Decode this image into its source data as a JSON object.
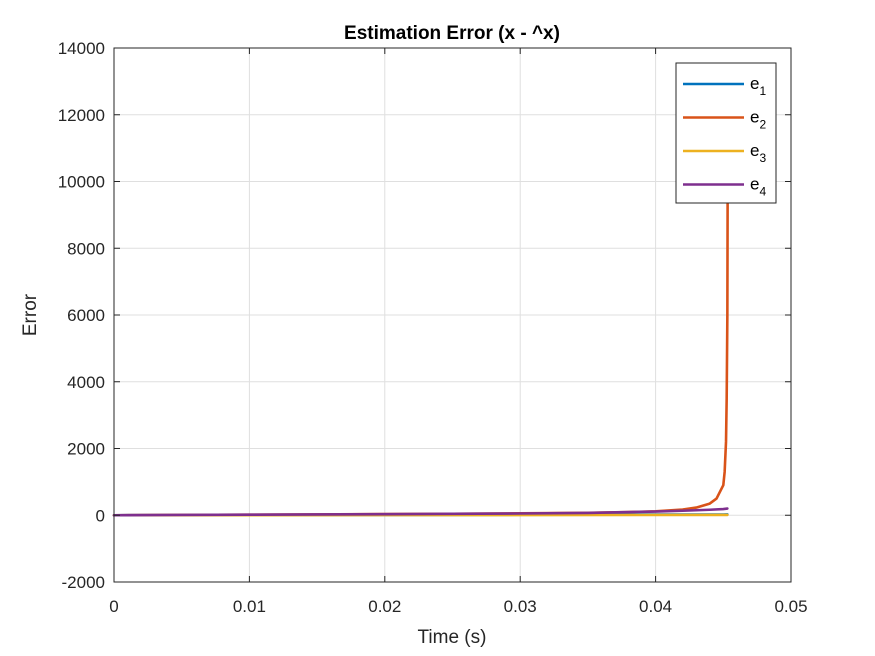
{
  "chart_data": {
    "type": "line",
    "title": "Estimation Error (x - ^x)",
    "xlabel": "Time (s)",
    "ylabel": "Error",
    "xlim": [
      0,
      0.05
    ],
    "ylim": [
      -2000,
      14000
    ],
    "xticks": [
      0,
      0.01,
      0.02,
      0.03,
      0.04,
      0.05
    ],
    "xtick_labels": [
      "0",
      "0.01",
      "0.02",
      "0.03",
      "0.04",
      "0.05"
    ],
    "yticks": [
      -2000,
      0,
      2000,
      4000,
      6000,
      8000,
      10000,
      12000,
      14000
    ],
    "ytick_labels": [
      "-2000",
      "0",
      "2000",
      "4000",
      "6000",
      "8000",
      "10000",
      "12000",
      "14000"
    ],
    "grid": true,
    "legend_position": "top-right",
    "series": [
      {
        "name": "e",
        "subscript": "1",
        "color": "#0072BD",
        "x": [
          0,
          0.01,
          0.02,
          0.03,
          0.04,
          0.045,
          0.0453
        ],
        "y": [
          0,
          5,
          10,
          15,
          20,
          22,
          23
        ]
      },
      {
        "name": "e",
        "subscript": "2",
        "color": "#D95319",
        "x": [
          0,
          0.005,
          0.01,
          0.015,
          0.02,
          0.025,
          0.03,
          0.035,
          0.038,
          0.04,
          0.042,
          0.043,
          0.044,
          0.0445,
          0.045,
          0.0451,
          0.0452,
          0.04525,
          0.0453,
          0.04532,
          0.04535
        ],
        "y": [
          0,
          8,
          16,
          25,
          35,
          45,
          58,
          75,
          95,
          120,
          170,
          230,
          350,
          500,
          900,
          1300,
          2200,
          3500,
          6000,
          9500,
          13500
        ]
      },
      {
        "name": "e",
        "subscript": "3",
        "color": "#EDB120",
        "x": [
          0,
          0.01,
          0.02,
          0.03,
          0.04,
          0.045,
          0.0453
        ],
        "y": [
          0,
          2,
          4,
          6,
          8,
          9,
          10
        ]
      },
      {
        "name": "e",
        "subscript": "4",
        "color": "#7E2F8E",
        "x": [
          0,
          0.005,
          0.01,
          0.015,
          0.02,
          0.025,
          0.03,
          0.035,
          0.04,
          0.042,
          0.044,
          0.045,
          0.0453
        ],
        "y": [
          0,
          8,
          16,
          24,
          33,
          42,
          52,
          70,
          110,
          135,
          165,
          185,
          200
        ]
      }
    ]
  }
}
